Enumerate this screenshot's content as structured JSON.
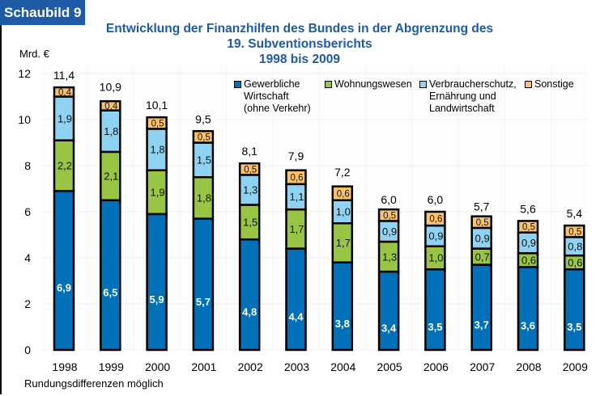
{
  "badge": "Schaubild 9",
  "title_lines": [
    "Entwicklung der Finanzhilfen des Bundes in der Abgrenzung des",
    "19. Subventionsberichts",
    "1998 bis 2009"
  ],
  "footnote": "Rundungsdifferenzen möglich",
  "chart_data": {
    "type": "bar",
    "stacked": true,
    "title": "Entwicklung der Finanzhilfen des Bundes in der Abgrenzung des 19. Subventionsberichts 1998 bis 2009",
    "ylabel": "Mrd. €",
    "xlabel": "",
    "ylim": [
      0,
      12
    ],
    "yticks": [
      "0",
      "2",
      "4",
      "6",
      "8",
      "10",
      "12"
    ],
    "grid": true,
    "legend_position": "top-right",
    "categories": [
      "1998",
      "1999",
      "2000",
      "2001",
      "2002",
      "2003",
      "2004",
      "2005",
      "2006",
      "2007",
      "2008",
      "2009"
    ],
    "series": [
      {
        "name": "Gewerbliche\nWirtschaft\n(ohne Verkehr)",
        "color": "#0070b8",
        "values": [
          6.9,
          6.5,
          5.9,
          5.7,
          4.8,
          4.4,
          3.8,
          3.4,
          3.5,
          3.7,
          3.6,
          3.5
        ],
        "labels": [
          "6,9",
          "6,5",
          "5,9",
          "5,7",
          "4,8",
          "4,4",
          "3,8",
          "3,4",
          "3,5",
          "3,7",
          "3,6",
          "3,5"
        ]
      },
      {
        "name": "Wohnungswesen",
        "color": "#99c544",
        "values": [
          2.2,
          2.1,
          1.9,
          1.8,
          1.5,
          1.7,
          1.7,
          1.3,
          1.0,
          0.7,
          0.6,
          0.6
        ],
        "labels": [
          "2,2",
          "2,1",
          "1,9",
          "1,8",
          "1,5",
          "1,7",
          "1,7",
          "1,3",
          "1,0",
          "0,7",
          "0,6",
          "0,6"
        ]
      },
      {
        "name": "Verbraucherschutz,\nErnährung und\nLandwirtschaft",
        "color": "#8fd3f2",
        "values": [
          1.9,
          1.8,
          1.8,
          1.5,
          1.3,
          1.1,
          1.0,
          0.9,
          0.9,
          0.9,
          0.9,
          0.8
        ],
        "labels": [
          "1,9",
          "1,8",
          "1,8",
          "1,5",
          "1,3",
          "1,1",
          "1,0",
          "0,9",
          "0,9",
          "0,9",
          "0,9",
          "0,8"
        ]
      },
      {
        "name": "Sonstige",
        "color": "#fbc26c",
        "values": [
          0.4,
          0.4,
          0.5,
          0.5,
          0.5,
          0.6,
          0.6,
          0.5,
          0.6,
          0.5,
          0.5,
          0.5
        ],
        "labels": [
          "0,4",
          "0,4",
          "0,5",
          "0,5",
          "0,5",
          "0,6",
          "0,6",
          "0,5",
          "0,6",
          "0,5",
          "0,5",
          "0,5"
        ]
      }
    ],
    "totals": [
      11.4,
      10.9,
      10.1,
      9.5,
      8.1,
      7.9,
      7.2,
      6.0,
      6.0,
      5.7,
      5.6,
      5.4
    ],
    "total_labels": [
      "11,4",
      "10,9",
      "10,1",
      "9,5",
      "8,1",
      "7,9",
      "7,2",
      "6,0",
      "6,0",
      "5,7",
      "5,6",
      "5,4"
    ]
  }
}
